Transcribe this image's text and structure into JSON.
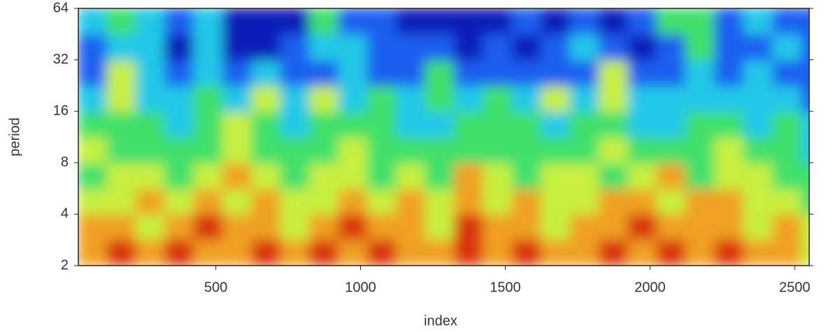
{
  "chart_data": {
    "type": "heatmap",
    "x_label": "index",
    "y_label": "period",
    "xlim": [
      25,
      2550
    ],
    "ylim": [
      2,
      64
    ],
    "ylog": true,
    "xticks": [
      500,
      1000,
      1500,
      2000,
      2500
    ],
    "yticks": [
      2,
      4,
      8,
      16,
      32,
      64
    ],
    "x": [
      75,
      175,
      275,
      375,
      475,
      575,
      675,
      775,
      875,
      975,
      1075,
      1175,
      1275,
      1375,
      1475,
      1575,
      1675,
      1775,
      1875,
      1975,
      2075,
      2175,
      2275,
      2375,
      2475,
      2575
    ],
    "y": [
      2.4,
      3.4,
      4.8,
      6.7,
      9.5,
      13.5,
      19,
      27,
      38,
      54
    ],
    "colors": [
      "#0a1fb8",
      "#1e5ef0",
      "#22c8e8",
      "#3fe06a",
      "#c8f040",
      "#f0a020",
      "#d83010"
    ],
    "z": [
      [
        5,
        6,
        5,
        6,
        5,
        5,
        6,
        5,
        6,
        5,
        6,
        5,
        5,
        6,
        5,
        6,
        5,
        5,
        6,
        5,
        6,
        5,
        6,
        5,
        5,
        4
      ],
      [
        5,
        5,
        4,
        5,
        6,
        5,
        5,
        4,
        5,
        6,
        5,
        5,
        4,
        6,
        5,
        5,
        4,
        5,
        5,
        6,
        5,
        5,
        5,
        4,
        5,
        4
      ],
      [
        4,
        4,
        5,
        4,
        5,
        4,
        5,
        4,
        4,
        5,
        4,
        5,
        4,
        5,
        4,
        5,
        4,
        4,
        5,
        5,
        4,
        5,
        5,
        4,
        4,
        3
      ],
      [
        3,
        4,
        4,
        3,
        4,
        5,
        4,
        3,
        4,
        4,
        3,
        4,
        3,
        5,
        4,
        3,
        4,
        4,
        3,
        4,
        5,
        3,
        4,
        4,
        3,
        3
      ],
      [
        4,
        3,
        3,
        3,
        3,
        4,
        3,
        3,
        3,
        4,
        3,
        3,
        3,
        3,
        3,
        3,
        3,
        3,
        4,
        3,
        3,
        3,
        4,
        3,
        3,
        2
      ],
      [
        3,
        3,
        3,
        2,
        3,
        4,
        3,
        2,
        3,
        3,
        3,
        2,
        2,
        3,
        3,
        3,
        2,
        3,
        3,
        2,
        2,
        3,
        3,
        2,
        3,
        2
      ],
      [
        2,
        4,
        2,
        2,
        3,
        2,
        4,
        2,
        4,
        2,
        3,
        2,
        3,
        2,
        3,
        2,
        4,
        2,
        4,
        2,
        2,
        2,
        2,
        2,
        2,
        1
      ],
      [
        1,
        4,
        2,
        1,
        2,
        1,
        2,
        1,
        1,
        2,
        1,
        1,
        3,
        1,
        1,
        1,
        1,
        1,
        4,
        1,
        1,
        2,
        1,
        2,
        1,
        1
      ],
      [
        1,
        2,
        2,
        0,
        2,
        0,
        0,
        1,
        2,
        2,
        1,
        1,
        1,
        0,
        1,
        0,
        1,
        2,
        1,
        0,
        1,
        3,
        1,
        1,
        2,
        1
      ],
      [
        2,
        3,
        2,
        1,
        2,
        0,
        0,
        0,
        3,
        1,
        1,
        0,
        0,
        0,
        0,
        1,
        0,
        1,
        0,
        1,
        3,
        3,
        1,
        2,
        1,
        1
      ]
    ]
  }
}
